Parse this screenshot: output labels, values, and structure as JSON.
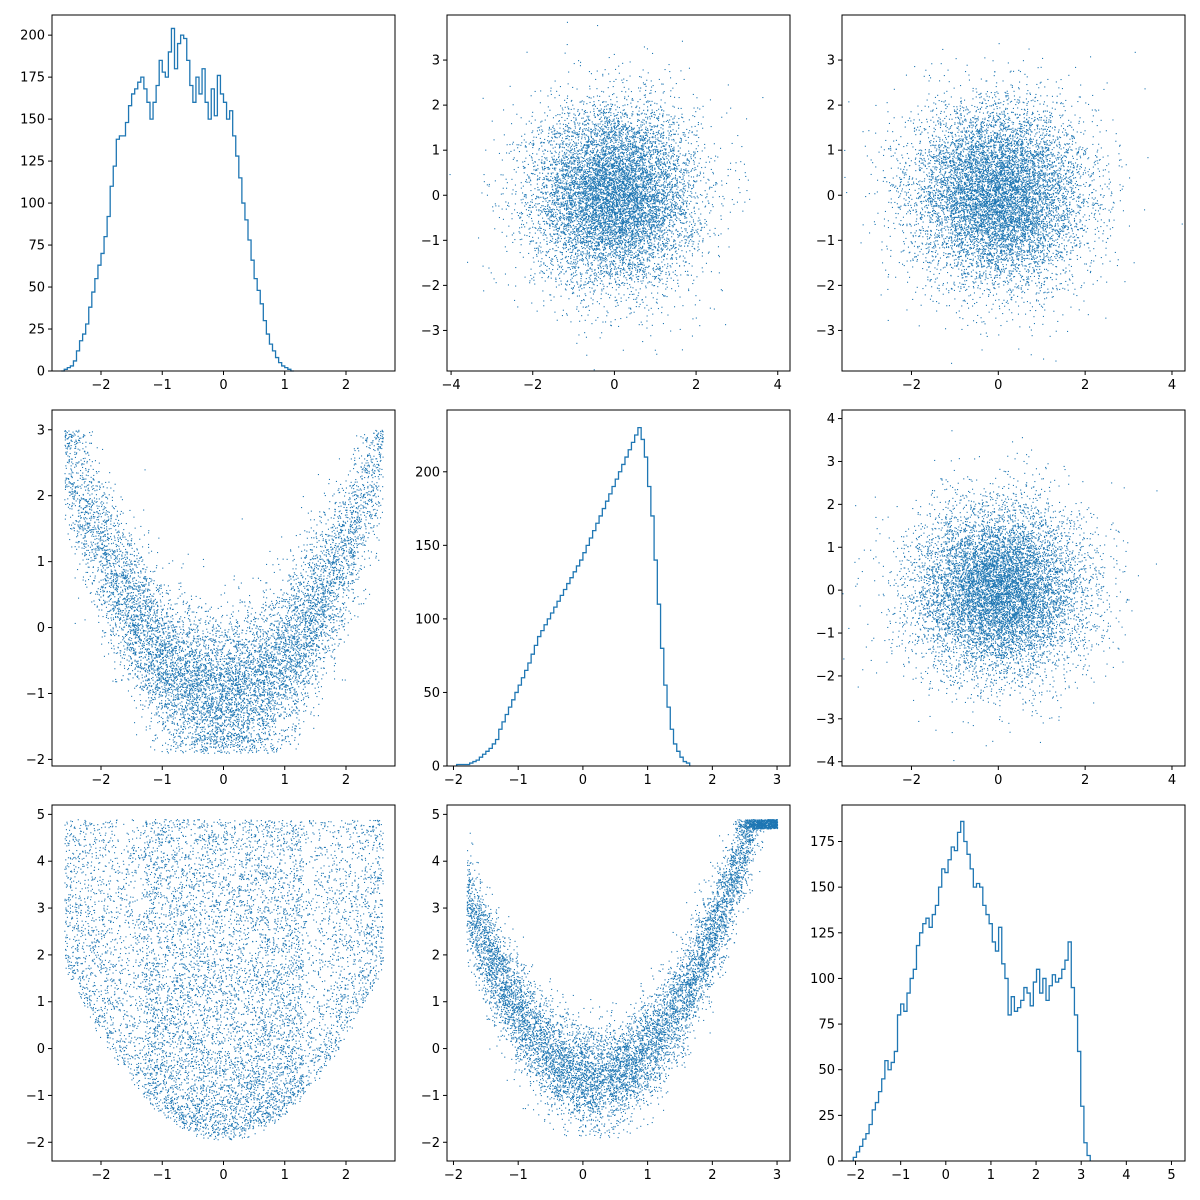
{
  "chart_data": [
    {
      "type": "histogram",
      "panel": "row1-col1",
      "xlim": [
        -2.8,
        2.8
      ],
      "ylim": [
        0,
        212
      ],
      "xticks": [
        -2,
        -1,
        0,
        1,
        2
      ],
      "xtick_labels": [
        "−2",
        "−1",
        "0",
        "1",
        "2"
      ],
      "yticks": [
        0,
        25,
        50,
        75,
        100,
        125,
        150,
        175,
        200
      ],
      "ytick_labels": [
        "0",
        "25",
        "50",
        "75",
        "100",
        "125",
        "150",
        "175",
        "200"
      ],
      "bin_start": -2.65,
      "bin_width": 0.05,
      "counts": [
        0,
        1,
        2,
        3,
        6,
        12,
        18,
        22,
        28,
        38,
        47,
        55,
        63,
        70,
        80,
        92,
        110,
        122,
        138,
        140,
        140,
        148,
        158,
        165,
        168,
        172,
        175,
        168,
        160,
        150,
        160,
        170,
        185,
        178,
        175,
        190,
        204,
        180,
        195,
        200,
        198,
        185,
        170,
        160,
        175,
        165,
        180,
        160,
        150,
        168,
        152,
        176,
        165,
        160,
        150,
        155,
        140,
        128,
        115,
        100,
        90,
        78,
        66,
        55,
        48,
        40,
        30,
        22,
        16,
        12,
        8,
        5,
        3,
        2,
        1,
        0
      ]
    },
    {
      "type": "scatter",
      "panel": "row1-col2",
      "distribution": "bivariate normal, mean (0,0), sd (1,1), n=10000",
      "xlim": [
        -4.1,
        4.3
      ],
      "ylim": [
        -3.9,
        4.0
      ],
      "xticks": [
        -4,
        -2,
        0,
        2,
        4
      ],
      "xtick_labels": [
        "−4",
        "−2",
        "0",
        "2",
        "4"
      ],
      "yticks": [
        -3,
        -2,
        -1,
        0,
        1,
        2,
        3
      ],
      "ytick_labels": [
        "−3",
        "−2",
        "−1",
        "0",
        "1",
        "2",
        "3"
      ]
    },
    {
      "type": "scatter",
      "panel": "row1-col3",
      "distribution": "bivariate normal, mean (0,0), sd (1,1), n=10000",
      "xlim": [
        -3.6,
        4.3
      ],
      "ylim": [
        -3.9,
        4.0
      ],
      "xticks": [
        -2,
        0,
        2,
        4
      ],
      "xtick_labels": [
        "−2",
        "0",
        "2",
        "4"
      ],
      "yticks": [
        -3,
        -2,
        -1,
        0,
        1,
        2,
        3
      ],
      "ytick_labels": [
        "−3",
        "−2",
        "−1",
        "0",
        "1",
        "2",
        "3"
      ]
    },
    {
      "type": "scatter",
      "panel": "row2-col1",
      "distribution": "v-shaped: x ~ uniform-ish(-2.6,2.6), y ≈ x^2 - 1 + noise",
      "xlim": [
        -2.8,
        2.8
      ],
      "ylim": [
        -2.1,
        3.3
      ],
      "xticks": [
        -2,
        -1,
        0,
        1,
        2
      ],
      "xtick_labels": [
        "−2",
        "−1",
        "0",
        "1",
        "2"
      ],
      "yticks": [
        -2,
        -1,
        0,
        1,
        2,
        3
      ],
      "ytick_labels": [
        "−2",
        "−1",
        "0",
        "1",
        "2",
        "3"
      ]
    },
    {
      "type": "histogram",
      "panel": "row2-col2",
      "xlim": [
        -2.1,
        3.2
      ],
      "ylim": [
        0,
        242
      ],
      "xticks": [
        -2,
        -1,
        0,
        1,
        2,
        3
      ],
      "xtick_labels": [
        "−2",
        "−1",
        "0",
        "1",
        "2",
        "3"
      ],
      "yticks": [
        0,
        50,
        100,
        150,
        200
      ],
      "ytick_labels": [
        "0",
        "50",
        "100",
        "150",
        "200"
      ],
      "bin_start": -1.95,
      "bin_width": 0.05,
      "counts": [
        1,
        1,
        1,
        1,
        2,
        3,
        4,
        6,
        8,
        10,
        12,
        15,
        18,
        25,
        30,
        35,
        40,
        45,
        50,
        55,
        60,
        65,
        70,
        76,
        82,
        88,
        92,
        96,
        100,
        104,
        108,
        112,
        116,
        120,
        124,
        128,
        132,
        136,
        140,
        145,
        150,
        155,
        160,
        165,
        170,
        175,
        180,
        185,
        190,
        195,
        200,
        205,
        210,
        215,
        220,
        225,
        230,
        222,
        210,
        190,
        170,
        140,
        110,
        80,
        55,
        40,
        25,
        15,
        10,
        6,
        3,
        2
      ]
    },
    {
      "type": "scatter",
      "panel": "row2-col3",
      "distribution": "bivariate normal, mean (0,0), sd (1,1), n=10000",
      "xlim": [
        -3.6,
        4.3
      ],
      "ylim": [
        -4.1,
        4.2
      ],
      "xticks": [
        -2,
        0,
        2,
        4
      ],
      "xtick_labels": [
        "−2",
        "0",
        "2",
        "4"
      ],
      "yticks": [
        -4,
        -3,
        -2,
        -1,
        0,
        1,
        2,
        3,
        4
      ],
      "ytick_labels": [
        "−4",
        "−3",
        "−2",
        "−1",
        "0",
        "1",
        "2",
        "3",
        "4"
      ]
    },
    {
      "type": "scatter",
      "panel": "row3-col1",
      "distribution": "u-shaped band: x in (-2.6,2.6), y between x^2-2 and 4.9",
      "xlim": [
        -2.8,
        2.8
      ],
      "ylim": [
        -2.4,
        5.2
      ],
      "xticks": [
        -2,
        -1,
        0,
        1,
        2
      ],
      "xtick_labels": [
        "−2",
        "−1",
        "0",
        "1",
        "2"
      ],
      "yticks": [
        -2,
        -1,
        0,
        1,
        2,
        3,
        4,
        5
      ],
      "ytick_labels": [
        "−2",
        "−1",
        "0",
        "1",
        "2",
        "3",
        "4",
        "5"
      ]
    },
    {
      "type": "scatter",
      "panel": "row3-col2",
      "distribution": "parabolic band: y ≈ x^2 - 1 + noise, x in (-1.8,3), y capped at 4.9",
      "xlim": [
        -2.1,
        3.2
      ],
      "ylim": [
        -2.4,
        5.2
      ],
      "xticks": [
        -2,
        -1,
        0,
        1,
        2,
        3
      ],
      "xtick_labels": [
        "−2",
        "−1",
        "0",
        "1",
        "2",
        "3"
      ],
      "yticks": [
        -2,
        -1,
        0,
        1,
        2,
        3,
        4,
        5
      ],
      "ytick_labels": [
        "−2",
        "−1",
        "0",
        "1",
        "2",
        "3",
        "4",
        "5"
      ]
    },
    {
      "type": "histogram",
      "panel": "row3-col3",
      "xlim": [
        -2.3,
        5.3
      ],
      "ylim": [
        0,
        195
      ],
      "xticks": [
        -2,
        -1,
        0,
        1,
        2,
        3,
        4,
        5
      ],
      "xtick_labels": [
        "−2",
        "−1",
        "0",
        "1",
        "2",
        "3",
        "4",
        "5"
      ],
      "yticks": [
        0,
        25,
        50,
        75,
        100,
        125,
        150,
        175
      ],
      "ytick_labels": [
        "0",
        "25",
        "50",
        "75",
        "100",
        "125",
        "150",
        "175"
      ],
      "bin_start": -2.05,
      "bin_width": 0.07,
      "counts": [
        2,
        5,
        8,
        12,
        15,
        20,
        28,
        32,
        38,
        45,
        55,
        50,
        54,
        60,
        80,
        86,
        82,
        92,
        100,
        105,
        118,
        125,
        130,
        133,
        128,
        135,
        140,
        150,
        160,
        158,
        165,
        172,
        170,
        180,
        186,
        175,
        168,
        160,
        150,
        152,
        150,
        140,
        135,
        130,
        120,
        115,
        128,
        108,
        100,
        80,
        90,
        82,
        84,
        88,
        95,
        92,
        85,
        98,
        105,
        92,
        100,
        88,
        96,
        102,
        98,
        100,
        105,
        110,
        120,
        95,
        80,
        60,
        30,
        10,
        3
      ]
    }
  ]
}
